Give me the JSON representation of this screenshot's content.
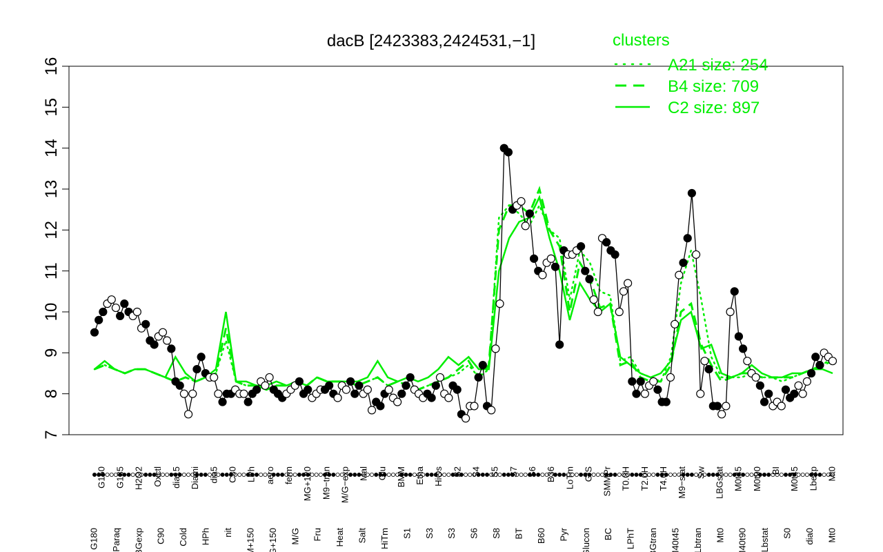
{
  "chart_data": {
    "type": "line",
    "title": "dacB [2423383,2424531,−1]",
    "ylim": [
      7,
      16
    ],
    "yticks": [
      "7",
      "8",
      "9",
      "10",
      "11",
      "12",
      "13",
      "14",
      "15",
      "16"
    ],
    "grid": false,
    "legend": {
      "title": "clusters",
      "placement": "top-right",
      "color": "#00ee00",
      "entries": [
        {
          "label": "A21 size: 254",
          "style": "dotted"
        },
        {
          "label": "B4 size: 709",
          "style": "dashed"
        },
        {
          "label": "C2 size: 897",
          "style": "solid"
        }
      ]
    },
    "x_tick_labels_upper": [
      "G150",
      "G135",
      "H2O2",
      "Oxctl",
      "dia15",
      "Diami",
      "dia5",
      "C30",
      "LPh",
      "aero",
      "ferm",
      "MG+120",
      "M9−tran",
      "M/G−exp",
      "Mal",
      "Glu",
      "BMM",
      "Etha",
      "HiOs",
      "S2",
      "S4",
      "S5",
      "S7",
      "S6",
      "B36",
      "LoTm",
      "G/S",
      "SMMPr",
      "T0.0H",
      "T2.0H",
      "T4.0H",
      "M9−stat",
      "Sw",
      "LBGstat",
      "M0t45",
      "M0t90",
      "BI",
      "M0t45",
      "Lbexp",
      "Mt0"
    ],
    "x_tick_labels_lower": [
      "G180",
      "Paraq",
      "LBGexp",
      "C90",
      "Cold",
      "HPh",
      "nit",
      "GM+150",
      "MG+150",
      "M/G",
      "Fru",
      "Heat",
      "Salt",
      "HiTm",
      "S1",
      "S3",
      "S3",
      "S6",
      "S8",
      "BT",
      "B60",
      "Pyr",
      "Glucon",
      "BC",
      "LPhT",
      "LBGtran",
      "M40t45",
      "Lbtran",
      "Mt0",
      "M40t90",
      "Lbstat",
      "S0",
      "dia0",
      "Mt0"
    ],
    "series": [
      {
        "values": [
          9.5,
          9.8,
          10.0,
          10.2,
          10.3,
          10.1,
          9.9,
          10.2,
          10.0,
          9.9,
          10.0,
          9.6,
          9.7,
          9.3,
          9.2,
          9.4,
          9.5,
          9.3,
          9.1,
          8.3,
          8.2,
          8.0,
          7.5,
          8.0,
          8.6,
          8.9,
          8.5,
          8.4,
          8.4,
          8.0,
          7.8,
          8.0,
          8.0,
          8.1,
          8.0,
          8.0,
          7.8,
          8.0,
          8.1,
          8.3,
          8.2,
          8.4,
          8.1,
          8.0,
          7.9,
          8.0,
          8.1,
          8.2,
          8.3,
          8.0,
          8.1,
          7.9,
          8.0,
          8.1,
          8.1,
          8.2,
          8.0,
          7.9,
          8.2,
          8.1,
          8.3,
          8.0,
          8.2,
          8.0,
          8.1,
          7.6,
          7.8,
          7.7,
          8.0,
          8.1,
          7.9,
          7.8,
          8.0,
          8.2,
          8.4,
          8.1,
          8.0,
          7.9,
          8.0,
          7.9,
          8.2,
          8.4,
          8.0,
          7.9,
          8.2,
          8.1,
          7.5,
          7.4,
          7.7,
          7.7,
          8.4,
          8.7,
          7.7,
          7.6,
          9.1,
          10.2,
          14.0,
          13.9,
          12.5,
          12.6,
          12.7,
          12.1,
          12.4,
          11.3,
          11.0,
          10.9,
          11.2,
          11.3,
          11.1,
          9.2,
          11.5,
          11.4,
          11.4,
          11.5,
          11.6,
          11.0,
          10.8,
          10.3,
          10.0,
          11.8,
          11.7,
          11.5,
          11.4,
          10.0,
          10.5,
          10.7,
          8.3,
          8.0,
          8.3,
          8.0,
          8.2,
          8.3,
          8.1,
          7.8,
          7.8,
          8.4,
          9.7,
          10.9,
          11.2,
          11.8,
          12.9,
          11.4,
          8.0,
          8.8,
          8.6,
          7.7,
          7.7,
          7.5,
          7.7,
          10.0,
          10.5,
          9.4,
          9.1,
          8.8,
          8.5,
          8.4,
          8.2,
          7.8,
          8.0,
          7.7,
          7.8,
          7.7,
          8.1,
          7.9,
          8.0,
          8.2,
          8.0,
          8.3,
          8.5,
          8.9,
          8.7,
          9.0,
          8.9,
          8.8
        ]
      },
      {
        "name": "A21 size: 254",
        "values": [
          8.6,
          8.7,
          8.6,
          8.5,
          8.6,
          8.6,
          8.5,
          8.4,
          8.3,
          8.4,
          8.3,
          8.4,
          8.5,
          9.3,
          8.3,
          8.2,
          8.2,
          8.1,
          8.2,
          8.2,
          8.3,
          8.2,
          8.4,
          8.3,
          8.3,
          8.3,
          8.2,
          8.3,
          8.4,
          8.2,
          8.3,
          8.2,
          8.1,
          8.2,
          8.3,
          8.4,
          8.5,
          8.7,
          8.4,
          8.6,
          12.3,
          12.6,
          12.4,
          12.1,
          12.6,
          12.0,
          11.8,
          10.3,
          11.5,
          11.2,
          10.5,
          10.4,
          8.8,
          8.9,
          8.5,
          8.4,
          8.3,
          8.9,
          10.7,
          11.5,
          10.3,
          8.9,
          8.4,
          8.4,
          8.4,
          8.5,
          8.4,
          8.4,
          8.3,
          8.4,
          8.5,
          8.6,
          8.7,
          8.9
        ]
      },
      {
        "name": "B4 size: 709",
        "values": [
          8.6,
          8.7,
          8.6,
          8.5,
          8.6,
          8.6,
          8.5,
          8.4,
          8.3,
          8.4,
          8.3,
          8.4,
          8.5,
          9.6,
          8.3,
          8.2,
          8.2,
          8.1,
          8.2,
          8.2,
          8.3,
          8.2,
          8.4,
          8.3,
          8.3,
          8.3,
          8.2,
          8.3,
          8.4,
          8.2,
          8.3,
          8.2,
          8.1,
          8.2,
          8.3,
          8.4,
          8.6,
          8.8,
          8.4,
          8.7,
          12.0,
          12.6,
          12.6,
          12.4,
          13.0,
          12.0,
          11.6,
          10.0,
          11.2,
          10.8,
          10.1,
          10.2,
          8.7,
          8.8,
          8.4,
          8.3,
          8.3,
          8.7,
          10.0,
          10.2,
          9.2,
          8.7,
          8.3,
          8.4,
          8.5,
          8.5,
          8.4,
          8.4,
          8.4,
          8.4,
          8.5,
          8.6,
          8.7,
          8.8
        ]
      },
      {
        "name": "C2 size: 897",
        "values": [
          8.6,
          8.8,
          8.6,
          8.5,
          8.6,
          8.6,
          8.5,
          8.4,
          8.9,
          8.5,
          8.3,
          8.4,
          8.6,
          10.0,
          8.3,
          8.3,
          8.2,
          8.2,
          8.3,
          8.2,
          8.3,
          8.2,
          8.4,
          8.3,
          8.3,
          8.3,
          8.3,
          8.4,
          8.8,
          8.4,
          8.3,
          8.4,
          8.3,
          8.4,
          8.6,
          8.9,
          8.7,
          8.9,
          8.6,
          8.6,
          11.0,
          11.8,
          12.2,
          12.3,
          12.8,
          11.8,
          11.0,
          9.8,
          10.7,
          10.3,
          10.0,
          10.2,
          8.9,
          8.7,
          8.5,
          8.4,
          8.5,
          8.8,
          9.8,
          10.0,
          9.1,
          9.2,
          8.5,
          8.4,
          8.5,
          8.7,
          8.5,
          8.4,
          8.4,
          8.5,
          8.5,
          8.6,
          8.6,
          8.5
        ]
      }
    ]
  }
}
